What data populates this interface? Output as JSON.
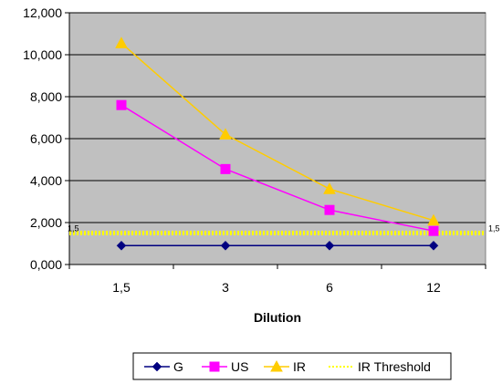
{
  "chart_data": {
    "type": "line",
    "xlabel": "Dilution",
    "categories": [
      "1,5",
      "3",
      "6",
      "12"
    ],
    "ylim": [
      0,
      12000
    ],
    "y_ticks": [
      "0,000",
      "2,000",
      "4,000",
      "6,000",
      "8,000",
      "10,000",
      "12,000"
    ],
    "grid": true,
    "plot_background": "#c0c0c0",
    "legend_position": "bottom",
    "series": [
      {
        "name": "G",
        "values": [
          900,
          900,
          900,
          900
        ],
        "color": "#000080",
        "marker": "diamond"
      },
      {
        "name": "US",
        "values": [
          7600,
          4550,
          2600,
          1600
        ],
        "color": "#ff00ff",
        "marker": "square"
      },
      {
        "name": "IR",
        "values": [
          10550,
          6200,
          3600,
          2100
        ],
        "color": "#ffcc00",
        "marker": "triangle"
      },
      {
        "name": "IR Threshold",
        "value": 1500,
        "label": "1,5",
        "color": "#ffff00",
        "style": "dashed"
      }
    ]
  }
}
